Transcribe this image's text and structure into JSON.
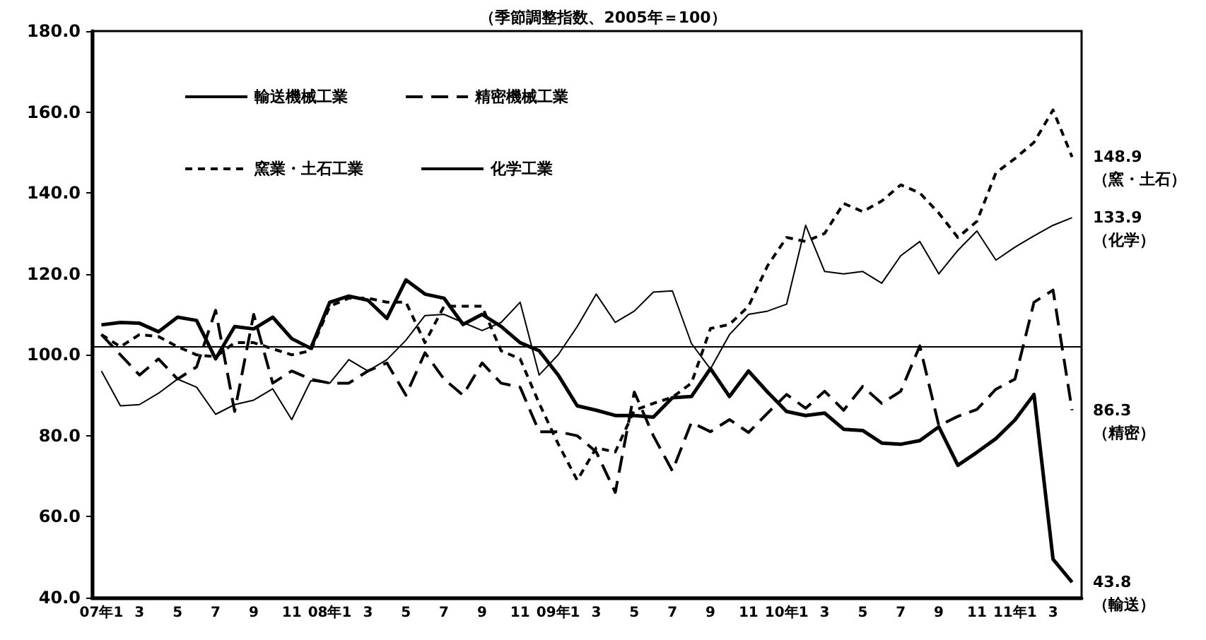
{
  "chart_data": {
    "type": "line",
    "title": "（季節調整指数、2005年＝100）",
    "categories": [
      "07年1",
      null,
      "3",
      null,
      "5",
      null,
      "7",
      null,
      "9",
      null,
      "11",
      null,
      "08年1",
      null,
      "3",
      null,
      "5",
      null,
      "7",
      null,
      "9",
      null,
      "11",
      null,
      "09年1",
      null,
      "3",
      null,
      "5",
      null,
      "7",
      null,
      "9",
      null,
      "11",
      null,
      "10年1",
      null,
      "3",
      null,
      "5",
      null,
      "7",
      null,
      "9",
      null,
      "11",
      null,
      "11年1",
      null,
      "3",
      null
    ],
    "series": [
      {
        "name": "輸送機械工業",
        "color": "#000000",
        "line_style": "solid",
        "values": [
          107.4,
          108,
          107.8,
          105.7,
          109.3,
          108.5,
          99,
          107,
          106.4,
          109.3,
          104,
          101.6,
          113,
          114.5,
          113.5,
          109,
          118.5,
          115,
          114,
          107.5,
          110,
          107,
          103,
          101,
          95,
          87.4,
          86.3,
          85,
          85,
          84.6,
          89.4,
          89.7,
          96.6,
          89.7,
          96,
          90.8,
          86,
          85,
          85.6,
          81.6,
          81.3,
          78.2,
          77.9,
          78.8,
          82.2,
          72.7,
          75.9,
          79.3,
          83.9,
          90.2,
          49.5,
          43.8
        ]
      },
      {
        "name": "精密機械工業",
        "color": "#000000",
        "line_style": "dashed",
        "values": [
          105,
          100,
          95,
          99,
          94,
          97,
          111,
          86,
          110,
          93,
          96,
          94,
          93,
          93,
          96,
          98,
          90,
          100.5,
          94,
          90,
          98,
          93,
          92,
          81,
          81,
          80,
          76,
          66,
          90.8,
          80,
          71.3,
          83.3,
          81,
          84,
          80.8,
          85.6,
          90.2,
          86.8,
          91,
          86.3,
          92.2,
          88,
          91,
          102.2,
          82.5,
          84.8,
          86.5,
          91.5,
          94,
          113,
          116,
          86.3
        ]
      },
      {
        "name": "窯業・土石工業",
        "color": "#000000",
        "line_style": "dashed",
        "values": [
          105,
          102,
          105,
          104.5,
          102,
          100,
          99.5,
          103,
          103,
          101.5,
          100,
          101,
          112,
          114,
          114,
          113,
          113,
          103,
          112,
          112,
          112,
          101,
          99,
          88,
          78,
          69,
          77,
          76,
          86.3,
          88,
          89.5,
          93,
          106.5,
          107.5,
          112,
          122,
          129,
          128,
          130,
          137.4,
          135.4,
          138,
          142,
          140,
          135,
          129,
          133,
          145,
          148.5,
          152.5,
          160.5,
          148.9
        ]
      },
      {
        "name": "化学工業",
        "color": "#000000",
        "line_style": "solid",
        "values": [
          96,
          87.4,
          87.7,
          90.5,
          94,
          92,
          85.3,
          87.7,
          88.8,
          91.6,
          84,
          93.6,
          93,
          98.8,
          96,
          98.8,
          103.6,
          109.7,
          110,
          108,
          106,
          108,
          113,
          95,
          100,
          107,
          115,
          108,
          110.8,
          115.5,
          115.8,
          102.8,
          96.5,
          105,
          110,
          110.8,
          112.5,
          132,
          120.6,
          120,
          120.6,
          117.7,
          124.5,
          128,
          120,
          125.8,
          130.6,
          123.4,
          126.6,
          129.4,
          132,
          133.9
        ]
      }
    ],
    "ylim": [
      40,
      180
    ],
    "yticks": [
      {
        "value": 40,
        "label": "40.0"
      },
      {
        "value": 60,
        "label": "60.0"
      },
      {
        "value": 80,
        "label": "80.0"
      },
      {
        "value": 100,
        "label": "100.0"
      },
      {
        "value": 120,
        "label": "120.0"
      },
      {
        "value": 140,
        "label": "140.0"
      },
      {
        "value": 160,
        "label": "160.0"
      },
      {
        "value": 180,
        "label": "180.0"
      }
    ],
    "ref_lines": [
      {
        "axis": "y",
        "value": 102,
        "color": "#000000"
      }
    ],
    "annotations": [
      "148.9\n（窯・土石）",
      "133.9\n（化学）",
      "86.3\n（精密）",
      "43.8\n（輸送）"
    ],
    "grid": false,
    "legend": "top left",
    "marker": "none"
  }
}
